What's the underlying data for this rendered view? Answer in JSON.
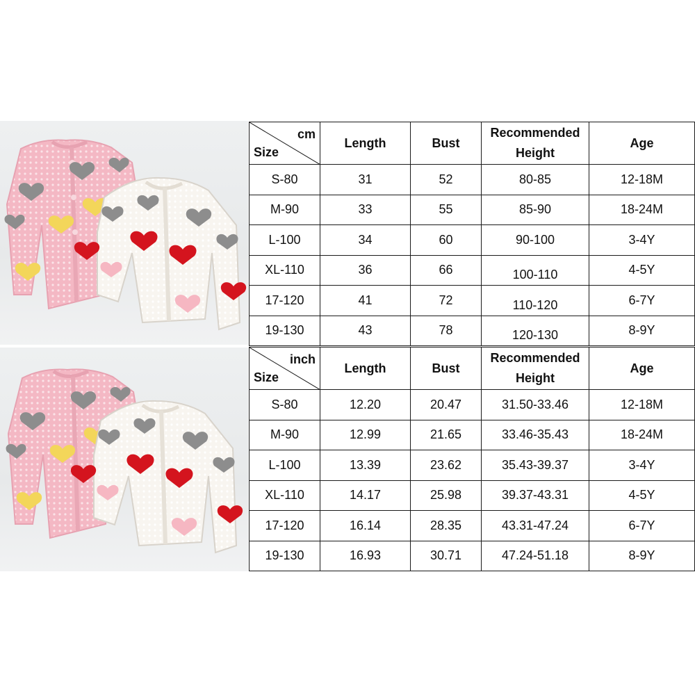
{
  "cm_table": {
    "unit": "cm",
    "size_label": "Size",
    "headers": [
      "Length",
      "Bust",
      "Recommended Height",
      "Age"
    ],
    "header_rec_line1": "Recommended",
    "header_rec_line2": "Height",
    "rows": [
      {
        "size": "S-80",
        "length": "31",
        "bust": "52",
        "height": "80-85",
        "age": "12-18M"
      },
      {
        "size": "M-90",
        "length": "33",
        "bust": "55",
        "height": "85-90",
        "age": "18-24M"
      },
      {
        "size": "L-100",
        "length": "34",
        "bust": "60",
        "height": "90-100",
        "age": "3-4Y"
      },
      {
        "size": "XL-110",
        "length": "36",
        "bust": "66",
        "height": "100-110",
        "age": "4-5Y"
      },
      {
        "size": "17-120",
        "length": "41",
        "bust": "72",
        "height": "110-120",
        "age": "6-7Y"
      },
      {
        "size": "19-130",
        "length": "43",
        "bust": "78",
        "height": "120-130",
        "age": "8-9Y"
      }
    ]
  },
  "inch_table": {
    "unit": "inch",
    "size_label": "Size",
    "headers": [
      "Length",
      "Bust",
      "Recommended Height",
      "Age"
    ],
    "header_rec_line1": "Recommended",
    "header_rec_line2": "Height",
    "rows": [
      {
        "size": "S-80",
        "length": "12.20",
        "bust": "20.47",
        "height": "31.50-33.46",
        "age": "12-18M"
      },
      {
        "size": "M-90",
        "length": "12.99",
        "bust": "21.65",
        "height": "33.46-35.43",
        "age": "18-24M"
      },
      {
        "size": "L-100",
        "length": "13.39",
        "bust": "23.62",
        "height": "35.43-39.37",
        "age": "3-4Y"
      },
      {
        "size": "XL-110",
        "length": "14.17",
        "bust": "25.98",
        "height": "39.37-43.31",
        "age": "4-5Y"
      },
      {
        "size": "17-120",
        "length": "16.14",
        "bust": "28.35",
        "height": "43.31-47.24",
        "age": "6-7Y"
      },
      {
        "size": "19-130",
        "length": "16.93",
        "bust": "30.71",
        "height": "47.24-51.18",
        "age": "8-9Y"
      }
    ]
  },
  "colors": {
    "pink_cardigan": "#f4b8c4",
    "white_cardigan": "#f7f4ef",
    "heart_red": "#d4141e",
    "heart_gray": "#8d8d8d",
    "heart_yellow": "#f3d65a",
    "heart_pink": "#f6b7c2"
  }
}
